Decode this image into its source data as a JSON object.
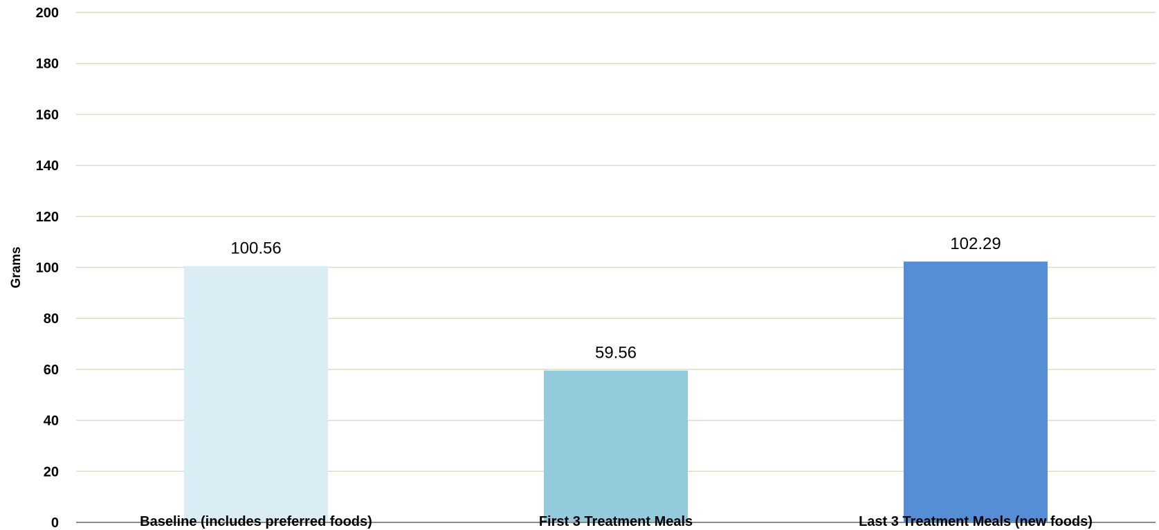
{
  "chart_data": {
    "type": "bar",
    "ylabel": "Grams",
    "xlabel": "",
    "title": "",
    "ylim": [
      0,
      200
    ],
    "yticks": [
      0,
      20,
      40,
      60,
      80,
      100,
      120,
      140,
      160,
      180,
      200
    ],
    "ytick_labels": [
      "0",
      "20",
      "40",
      "60",
      "80",
      "100",
      "120",
      "140",
      "160",
      "180",
      "200"
    ],
    "grid": true,
    "legend": "none",
    "categories": [
      "Baseline (includes preferred foods)",
      "First 3 Treatment Meals",
      "Last 3 Treatment Meals (new foods)"
    ],
    "values": [
      100.56,
      59.56,
      102.29
    ],
    "data_labels": [
      "100.56",
      "59.56",
      "102.29"
    ],
    "colors": [
      "#daedf4",
      "#93cadc",
      "#558ed5"
    ],
    "grid_color": "#dcdcc4",
    "axis_color": "#8a8a8a"
  }
}
